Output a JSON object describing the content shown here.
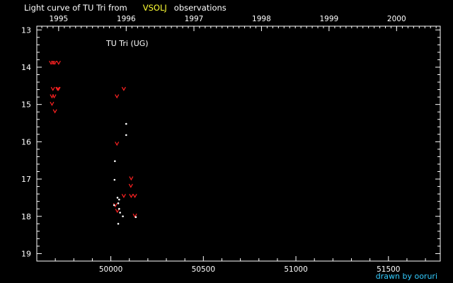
{
  "header": {
    "title_part1": "Light curve of TU Tri from",
    "title_part2": "VSOLJ",
    "title_part3": "observations"
  },
  "credit": "drawn by ooruri",
  "colors": {
    "background": "#000000",
    "axis": "#ffffff",
    "visual_obs": "#ff2222",
    "photo_obs": "#ffffff",
    "highlight_text": "#ffff33",
    "credit_text": "#33ccff"
  },
  "chart_data": {
    "type": "scatter",
    "star_label": "TU Tri (UG)",
    "x_label": "",
    "y_label": "",
    "xlim": [
      49600,
      51780
    ],
    "ylim": [
      19.2,
      12.9
    ],
    "y_inverted": true,
    "x_ticks": [
      50000,
      50500,
      51000,
      51500
    ],
    "x_tick_labels": [
      "50000",
      "50500",
      "51000",
      "51500"
    ],
    "y_ticks": [
      13,
      14,
      15,
      16,
      17,
      18,
      19
    ],
    "y_tick_labels": [
      "13",
      "14",
      "15",
      "16",
      "17",
      "18",
      "19"
    ],
    "top_axis_ticks": [
      49718,
      50083,
      50449,
      50814,
      51179,
      51544
    ],
    "top_axis_labels": [
      "1995",
      "1996",
      "1997",
      "1998",
      "1999",
      "2000"
    ],
    "series": [
      {
        "marker": "v",
        "points": [
          {
            "x": 49677,
            "y": 13.88
          },
          {
            "x": 49688,
            "y": 13.88
          },
          {
            "x": 49697,
            "y": 13.88
          },
          {
            "x": 49718,
            "y": 13.88
          },
          {
            "x": 49687,
            "y": 14.58
          },
          {
            "x": 49712,
            "y": 14.58
          },
          {
            "x": 49717,
            "y": 14.58
          },
          {
            "x": 49682,
            "y": 14.78
          },
          {
            "x": 49694,
            "y": 14.78
          },
          {
            "x": 49682,
            "y": 14.98
          },
          {
            "x": 49698,
            "y": 15.18
          },
          {
            "x": 50033,
            "y": 14.78
          },
          {
            "x": 50070,
            "y": 14.58
          },
          {
            "x": 50033,
            "y": 16.05
          },
          {
            "x": 50110,
            "y": 16.98
          },
          {
            "x": 50108,
            "y": 17.18
          },
          {
            "x": 50070,
            "y": 17.45
          },
          {
            "x": 50110,
            "y": 17.45
          },
          {
            "x": 50130,
            "y": 17.45
          },
          {
            "x": 50024,
            "y": 17.7
          },
          {
            "x": 50035,
            "y": 17.85
          },
          {
            "x": 50130,
            "y": 17.98
          }
        ]
      },
      {
        "marker": "dot",
        "points": [
          {
            "x": 50083,
            "y": 15.52
          },
          {
            "x": 50083,
            "y": 15.82
          },
          {
            "x": 50022,
            "y": 16.52
          },
          {
            "x": 50020,
            "y": 17.02
          },
          {
            "x": 50036,
            "y": 17.5
          },
          {
            "x": 50045,
            "y": 17.55
          },
          {
            "x": 50040,
            "y": 17.65
          },
          {
            "x": 50018,
            "y": 17.7
          },
          {
            "x": 50045,
            "y": 17.8
          },
          {
            "x": 50050,
            "y": 17.9
          },
          {
            "x": 50065,
            "y": 18.0
          },
          {
            "x": 50135,
            "y": 18.02
          },
          {
            "x": 50040,
            "y": 18.2
          }
        ]
      }
    ]
  }
}
